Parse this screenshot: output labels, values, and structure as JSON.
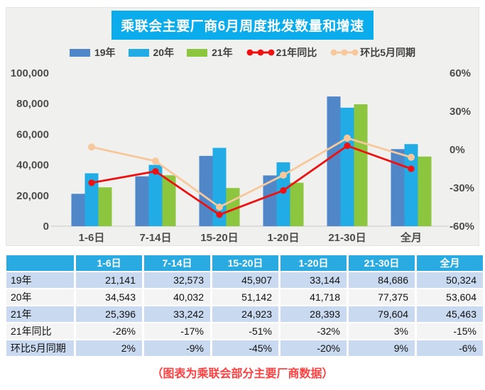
{
  "title": "乘联会主要厂商6月周度批发数量和增速",
  "caption": "（图表为乘联会部分主要厂商数据）",
  "colors": {
    "title_bg": "#0BACEC",
    "panel_bg": "#F0F0EF",
    "table_header_bg": "#29ABE2",
    "row_blue": "#C9D9F0",
    "row_light": "#F4F4F4",
    "caption_red": "#FF4040",
    "axis_text": "#4D4D4D"
  },
  "chart_data": {
    "type": "bar",
    "subtype": "grouped bars with two overlay lines, dual axis",
    "title": "乘联会主要厂商6月周度批发数量和增速",
    "categories": [
      "1-6日",
      "7-14日",
      "15-20日",
      "1-20日",
      "21-30日",
      "全月"
    ],
    "series": [
      {
        "name": "19年",
        "type": "bar",
        "axis": "left",
        "color": "#5087C8",
        "values": [
          21141,
          32573,
          45907,
          33144,
          84686,
          50324
        ]
      },
      {
        "name": "20年",
        "type": "bar",
        "axis": "left",
        "color": "#22ACE6",
        "values": [
          34543,
          40032,
          51142,
          41718,
          77375,
          53604
        ]
      },
      {
        "name": "21年",
        "type": "bar",
        "axis": "left",
        "color": "#8CC63E",
        "values": [
          25396,
          33242,
          24923,
          28393,
          79604,
          45463
        ]
      },
      {
        "name": "21年同比",
        "type": "line",
        "axis": "right",
        "color": "#EE1111",
        "values": [
          -26,
          -17,
          -51,
          -32,
          3,
          -15
        ]
      },
      {
        "name": "环比5月同期",
        "type": "line",
        "axis": "right",
        "color": "#F6C89B",
        "values": [
          2,
          -9,
          -45,
          -20,
          9,
          -6
        ]
      }
    ],
    "left_axis": {
      "min": 0,
      "max": 100000,
      "tick_values": [
        0,
        20000,
        40000,
        60000,
        80000,
        100000
      ],
      "tick_labels": [
        "0",
        "20,000",
        "40,000",
        "60,000",
        "80,000",
        "100,000"
      ]
    },
    "right_axis": {
      "min": -60,
      "max": 60,
      "tick_values": [
        -60,
        -30,
        0,
        30,
        60
      ],
      "tick_labels": [
        "-60%",
        "-30%",
        "0%",
        "30%",
        "60%"
      ]
    },
    "legend_position": "top",
    "grid": false
  },
  "table": {
    "header": [
      "",
      "1-6日",
      "7-14日",
      "15-20日",
      "1-20日",
      "21-30日",
      "全月"
    ],
    "rows": [
      {
        "label": "19年",
        "values": [
          "21,141",
          "32,573",
          "45,907",
          "33,144",
          "84,686",
          "50,324"
        ]
      },
      {
        "label": "20年",
        "values": [
          "34,543",
          "40,032",
          "51,142",
          "41,718",
          "77,375",
          "53,604"
        ]
      },
      {
        "label": "21年",
        "values": [
          "25,396",
          "33,242",
          "24,923",
          "28,393",
          "79,604",
          "45,463"
        ]
      },
      {
        "label": "21年同比",
        "values": [
          "-26%",
          "-17%",
          "-51%",
          "-32%",
          "3%",
          "-15%"
        ]
      },
      {
        "label": "环比5月同期",
        "values": [
          "2%",
          "-9%",
          "-45%",
          "-20%",
          "9%",
          "-6%"
        ]
      }
    ]
  }
}
